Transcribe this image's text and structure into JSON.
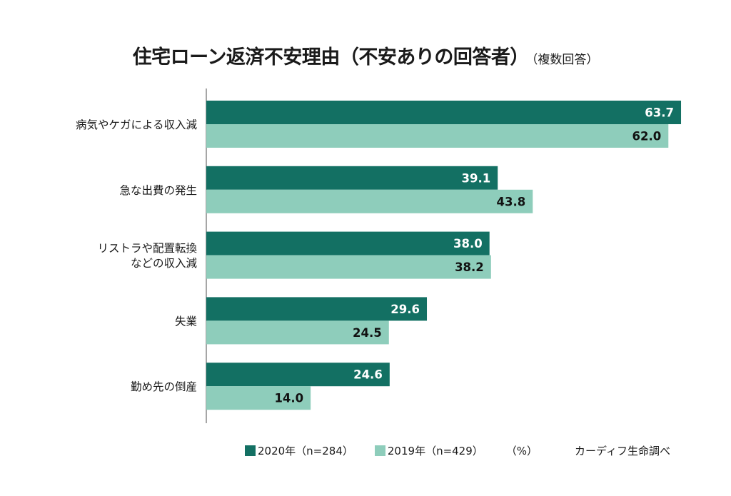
{
  "chart_data": {
    "type": "bar",
    "orientation": "horizontal",
    "title": "住宅ローン返済不安理由（不安ありの回答者）",
    "subtitle": "（複数回答）",
    "categories": [
      [
        "病気やケガによる収入減"
      ],
      [
        "急な出費の発生"
      ],
      [
        "リストラや配置転換",
        "などの収入減"
      ],
      [
        "失業"
      ],
      [
        "勤め先の倒産"
      ]
    ],
    "series": [
      {
        "name": "2020年（n=284）",
        "color": "#137063",
        "label_color": "#ffffff",
        "values": [
          63.7,
          39.1,
          38.0,
          29.6,
          24.6
        ]
      },
      {
        "name": "2019年（n=429）",
        "color": "#8ecdbb",
        "label_color": "#111111",
        "values": [
          62.0,
          43.8,
          38.2,
          24.5,
          14.0
        ]
      }
    ],
    "xlim": [
      0,
      70
    ],
    "unit": "（%）",
    "source": "カーディフ生命調べ",
    "grid": false,
    "legend_position": "bottom"
  }
}
